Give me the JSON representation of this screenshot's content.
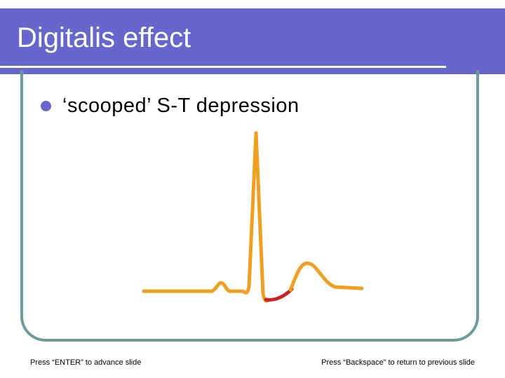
{
  "slide": {
    "title": "Digitalis effect",
    "bullets": [
      {
        "text": "‘scooped’ S-T depression",
        "icon": "bullet-dot-icon"
      }
    ],
    "footer": {
      "left": "Press “ENTER” to advance slide",
      "right": "Press “Backspace” to return to previous slide"
    }
  },
  "colors": {
    "header": "#6666cc",
    "title_text": "#ffffff",
    "frame": "#6b9b9b",
    "bullet": "#6666cc",
    "ecg_trace": "#f0a020",
    "st_segment": "#cc2222"
  }
}
